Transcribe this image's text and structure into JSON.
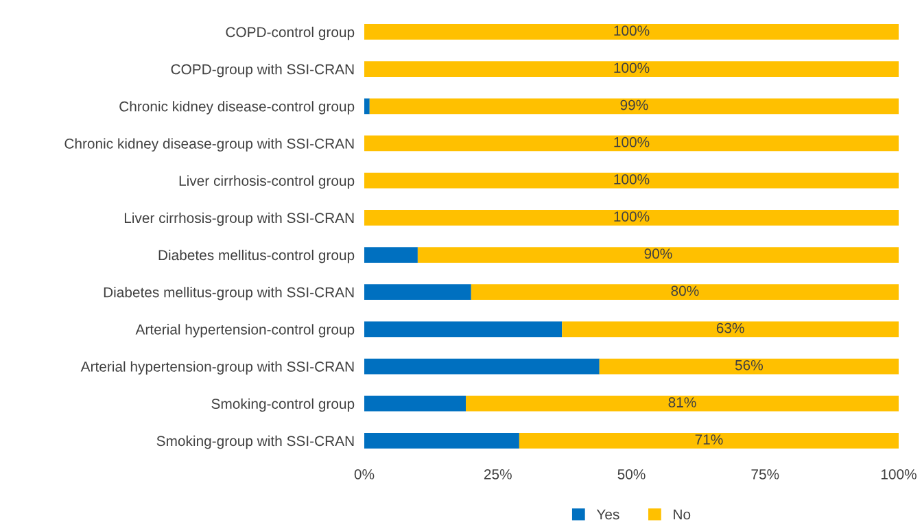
{
  "chart_data": {
    "type": "bar",
    "orientation": "horizontal",
    "stacked": true,
    "categories": [
      "COPD-control group",
      "COPD-group with SSI-CRAN",
      "Chronic kidney disease-control group",
      "Chronic kidney disease-group with SSI-CRAN",
      "Liver cirrhosis-control group",
      "Liver cirrhosis-group with SSI-CRAN",
      "Diabetes mellitus-control group",
      "Diabetes mellitus-group with SSI-CRAN",
      "Arterial hypertension-control group",
      "Arterial hypertension-group with SSI-CRAN",
      "Smoking-control group",
      "Smoking-group with SSI-CRAN"
    ],
    "series": [
      {
        "name": "Yes",
        "color": "#0070c0",
        "values": [
          0,
          0,
          1,
          0,
          0,
          0,
          10,
          20,
          37,
          44,
          19,
          29
        ]
      },
      {
        "name": "No",
        "color": "#ffc000",
        "values": [
          100,
          100,
          99,
          100,
          100,
          100,
          90,
          80,
          63,
          56,
          81,
          71
        ],
        "value_labels": [
          "100%",
          "100%",
          "99%",
          "100%",
          "100%",
          "100%",
          "90%",
          "80%",
          "63%",
          "56%",
          "81%",
          "71%"
        ]
      }
    ],
    "xlim": [
      0,
      100
    ],
    "xticks": [
      {
        "value": 0,
        "label": "0%"
      },
      {
        "value": 25,
        "label": "25%"
      },
      {
        "value": 50,
        "label": "50%"
      },
      {
        "value": 75,
        "label": "75%"
      },
      {
        "value": 100,
        "label": "100%"
      }
    ],
    "grid": false,
    "legend": "bottom"
  }
}
